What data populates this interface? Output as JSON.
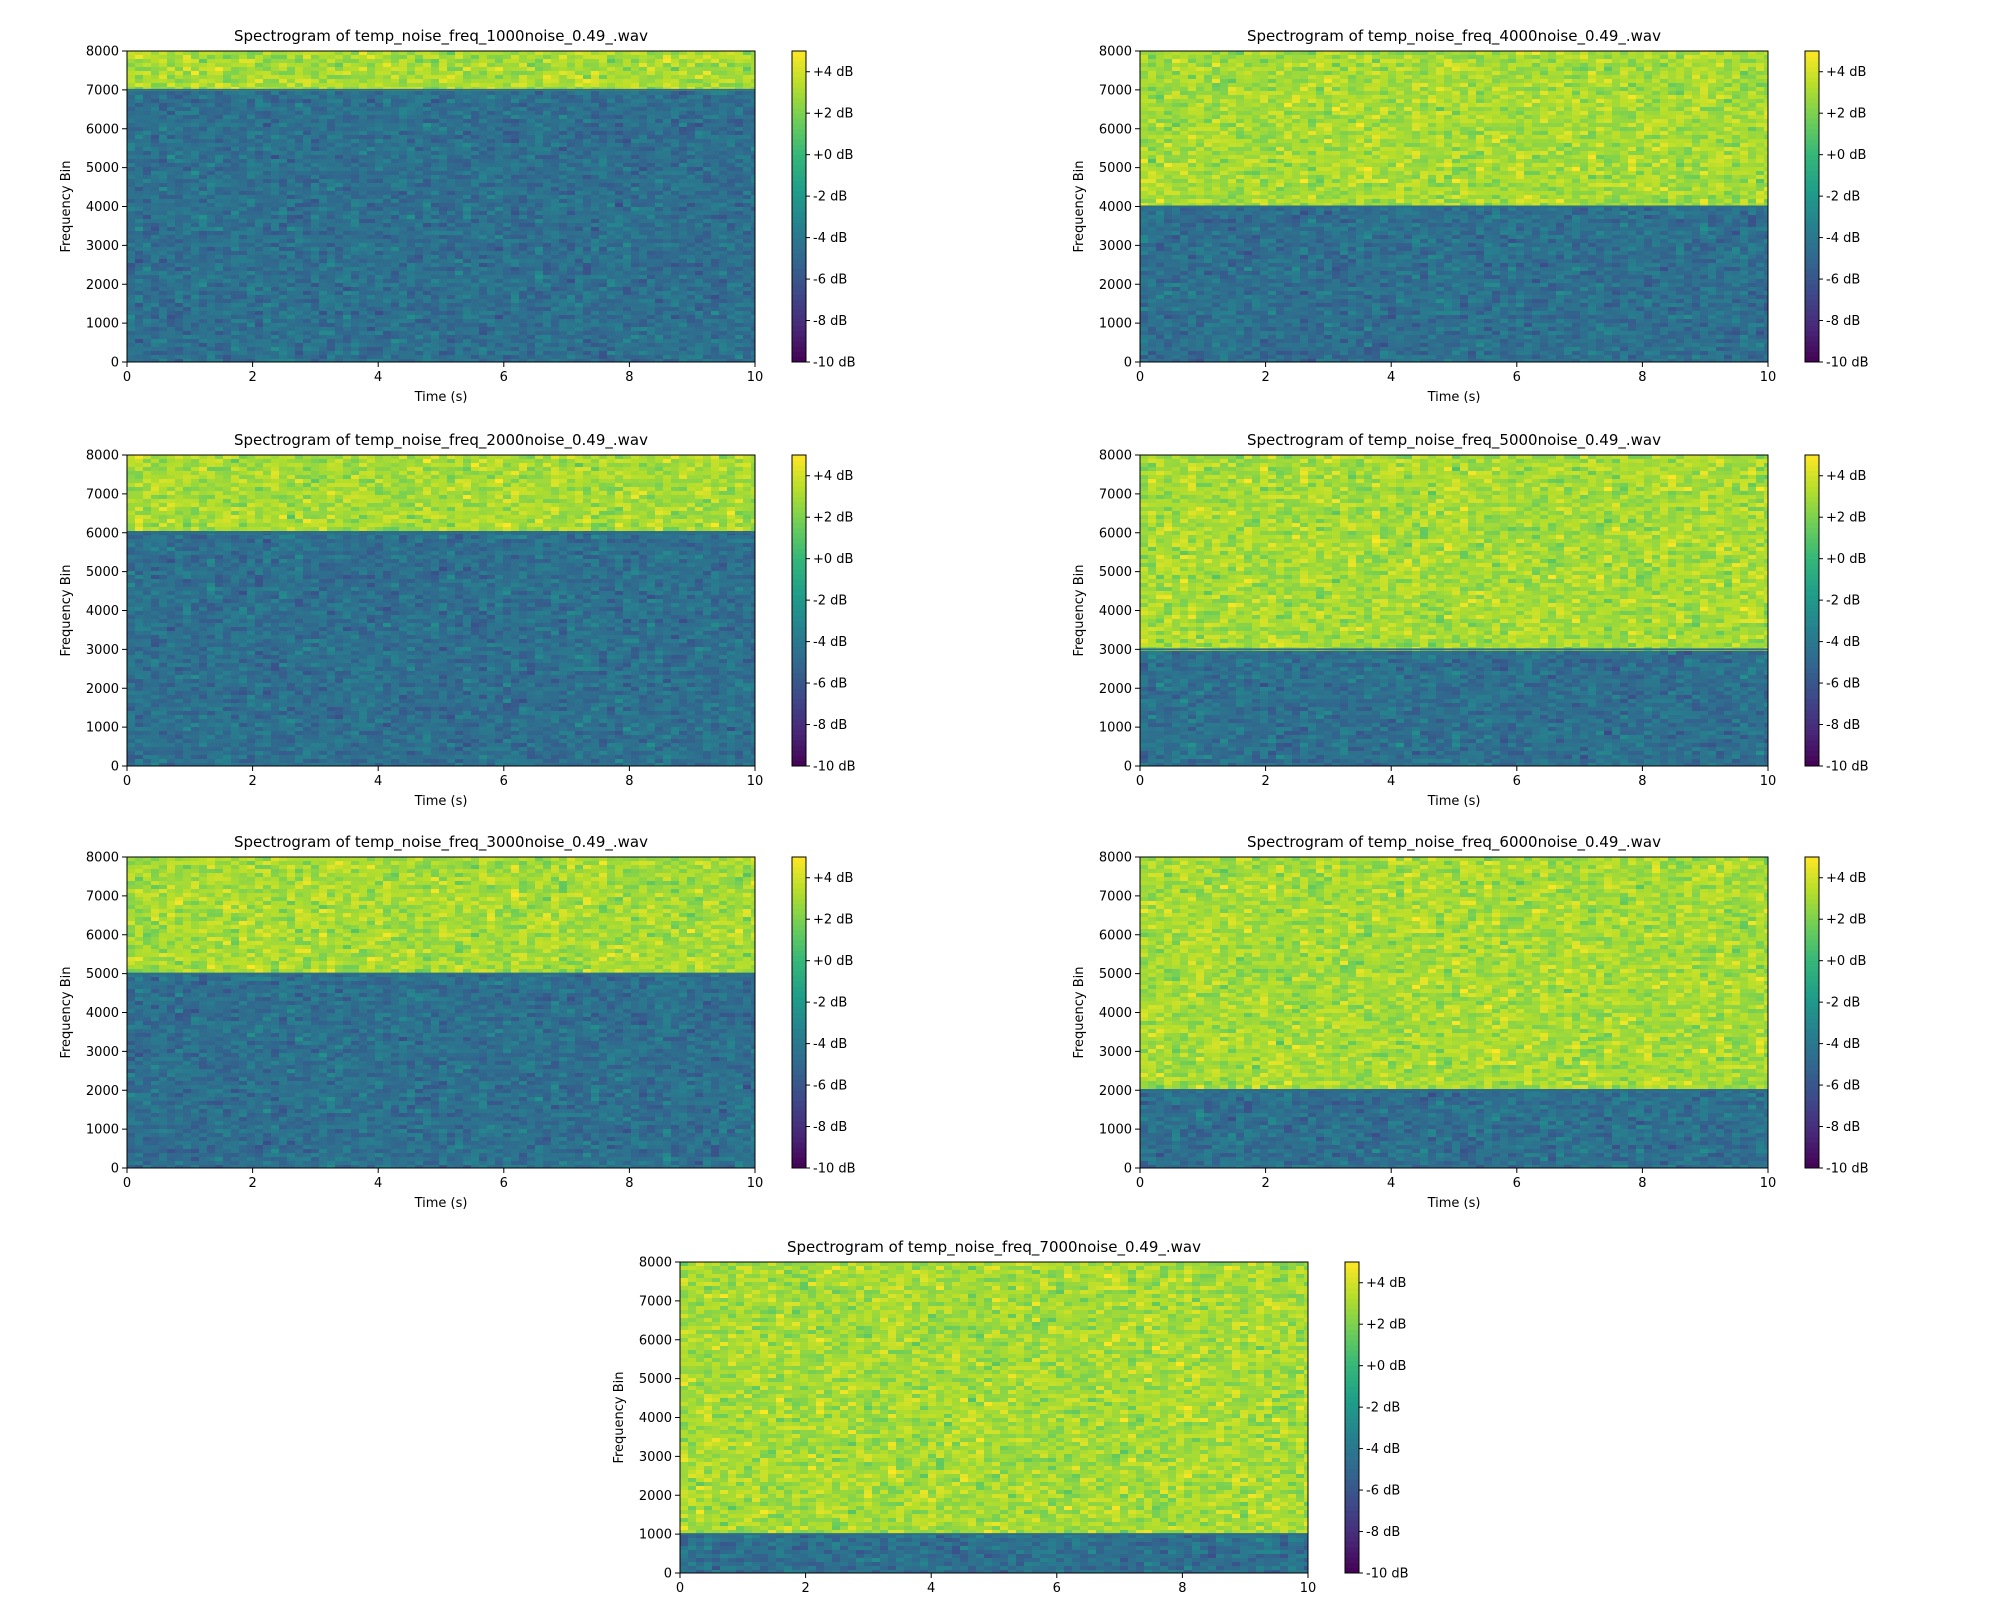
{
  "chart_data": [
    {
      "type": "heatmap",
      "title": "Spectrogram of temp_noise_freq_1000noise_0.49_.wav",
      "xlabel": "Time (s)",
      "ylabel": "Frequency Bin",
      "xlim": [
        0,
        10
      ],
      "ylim": [
        0,
        8000
      ],
      "xticks": [
        0,
        2,
        4,
        6,
        8,
        10
      ],
      "yticks": [
        0,
        1000,
        2000,
        3000,
        4000,
        5000,
        6000,
        7000,
        8000
      ],
      "boundary_hz": 7000,
      "low_band_level_db": -4.5,
      "high_band_level_db": 3,
      "colorbar": {
        "range": [
          -10,
          5
        ],
        "ticks": [
          "+4 dB",
          "+2 dB",
          "+0 dB",
          "-2 dB",
          "-4 dB",
          "-6 dB",
          "-8 dB",
          "-10 dB"
        ],
        "tick_values": [
          4,
          2,
          0,
          -2,
          -4,
          -6,
          -8,
          -10
        ]
      }
    },
    {
      "type": "heatmap",
      "title": "Spectrogram of temp_noise_freq_4000noise_0.49_.wav",
      "xlabel": "Time (s)",
      "ylabel": "Frequency Bin",
      "xlim": [
        0,
        10
      ],
      "ylim": [
        0,
        8000
      ],
      "xticks": [
        0,
        2,
        4,
        6,
        8,
        10
      ],
      "yticks": [
        0,
        1000,
        2000,
        3000,
        4000,
        5000,
        6000,
        7000,
        8000
      ],
      "boundary_hz": 4000,
      "low_band_level_db": -4.5,
      "high_band_level_db": 3,
      "colorbar": {
        "range": [
          -10,
          5
        ],
        "ticks": [
          "+4 dB",
          "+2 dB",
          "+0 dB",
          "-2 dB",
          "-4 dB",
          "-6 dB",
          "-8 dB",
          "-10 dB"
        ],
        "tick_values": [
          4,
          2,
          0,
          -2,
          -4,
          -6,
          -8,
          -10
        ]
      }
    },
    {
      "type": "heatmap",
      "title": "Spectrogram of temp_noise_freq_2000noise_0.49_.wav",
      "xlabel": "Time (s)",
      "ylabel": "Frequency Bin",
      "xlim": [
        0,
        10
      ],
      "ylim": [
        0,
        8000
      ],
      "xticks": [
        0,
        2,
        4,
        6,
        8,
        10
      ],
      "yticks": [
        0,
        1000,
        2000,
        3000,
        4000,
        5000,
        6000,
        7000,
        8000
      ],
      "boundary_hz": 6000,
      "low_band_level_db": -4.5,
      "high_band_level_db": 3,
      "colorbar": {
        "range": [
          -10,
          5
        ],
        "ticks": [
          "+4 dB",
          "+2 dB",
          "+0 dB",
          "-2 dB",
          "-4 dB",
          "-6 dB",
          "-8 dB",
          "-10 dB"
        ],
        "tick_values": [
          4,
          2,
          0,
          -2,
          -4,
          -6,
          -8,
          -10
        ]
      }
    },
    {
      "type": "heatmap",
      "title": "Spectrogram of temp_noise_freq_5000noise_0.49_.wav",
      "xlabel": "Time (s)",
      "ylabel": "Frequency Bin",
      "xlim": [
        0,
        10
      ],
      "ylim": [
        0,
        8000
      ],
      "xticks": [
        0,
        2,
        4,
        6,
        8,
        10
      ],
      "yticks": [
        0,
        1000,
        2000,
        3000,
        4000,
        5000,
        6000,
        7000,
        8000
      ],
      "boundary_hz": 3000,
      "low_band_level_db": -4.5,
      "high_band_level_db": 3,
      "colorbar": {
        "range": [
          -10,
          5
        ],
        "ticks": [
          "+4 dB",
          "+2 dB",
          "+0 dB",
          "-2 dB",
          "-4 dB",
          "-6 dB",
          "-8 dB",
          "-10 dB"
        ],
        "tick_values": [
          4,
          2,
          0,
          -2,
          -4,
          -6,
          -8,
          -10
        ]
      }
    },
    {
      "type": "heatmap",
      "title": "Spectrogram of temp_noise_freq_3000noise_0.49_.wav",
      "xlabel": "Time (s)",
      "ylabel": "Frequency Bin",
      "xlim": [
        0,
        10
      ],
      "ylim": [
        0,
        8000
      ],
      "xticks": [
        0,
        2,
        4,
        6,
        8,
        10
      ],
      "yticks": [
        0,
        1000,
        2000,
        3000,
        4000,
        5000,
        6000,
        7000,
        8000
      ],
      "boundary_hz": 5000,
      "low_band_level_db": -4.5,
      "high_band_level_db": 3,
      "colorbar": {
        "range": [
          -10,
          5
        ],
        "ticks": [
          "+4 dB",
          "+2 dB",
          "+0 dB",
          "-2 dB",
          "-4 dB",
          "-6 dB",
          "-8 dB",
          "-10 dB"
        ],
        "tick_values": [
          4,
          2,
          0,
          -2,
          -4,
          -6,
          -8,
          -10
        ]
      }
    },
    {
      "type": "heatmap",
      "title": "Spectrogram of temp_noise_freq_6000noise_0.49_.wav",
      "xlabel": "Time (s)",
      "ylabel": "Frequency Bin",
      "xlim": [
        0,
        10
      ],
      "ylim": [
        0,
        8000
      ],
      "xticks": [
        0,
        2,
        4,
        6,
        8,
        10
      ],
      "yticks": [
        0,
        1000,
        2000,
        3000,
        4000,
        5000,
        6000,
        7000,
        8000
      ],
      "boundary_hz": 2000,
      "low_band_level_db": -4.5,
      "high_band_level_db": 3,
      "colorbar": {
        "range": [
          -10,
          5
        ],
        "ticks": [
          "+4 dB",
          "+2 dB",
          "+0 dB",
          "-2 dB",
          "-4 dB",
          "-6 dB",
          "-8 dB",
          "-10 dB"
        ],
        "tick_values": [
          4,
          2,
          0,
          -2,
          -4,
          -6,
          -8,
          -10
        ]
      }
    },
    {
      "type": "heatmap",
      "title": "Spectrogram of temp_noise_freq_7000noise_0.49_.wav",
      "xlabel": "Time (s)",
      "ylabel": "Frequency Bin",
      "xlim": [
        0,
        10
      ],
      "ylim": [
        0,
        8000
      ],
      "xticks": [
        0,
        2,
        4,
        6,
        8,
        10
      ],
      "yticks": [
        0,
        1000,
        2000,
        3000,
        4000,
        5000,
        6000,
        7000,
        8000
      ],
      "boundary_hz": 1000,
      "low_band_level_db": -4.5,
      "high_band_level_db": 3,
      "colorbar": {
        "range": [
          -10,
          5
        ],
        "ticks": [
          "+4 dB",
          "+2 dB",
          "+0 dB",
          "-2 dB",
          "-4 dB",
          "-6 dB",
          "-8 dB",
          "-10 dB"
        ],
        "tick_values": [
          4,
          2,
          0,
          -2,
          -4,
          -6,
          -8,
          -10
        ]
      }
    }
  ],
  "colormap": {
    "name": "viridis",
    "stops": [
      "#440154",
      "#482878",
      "#3e4989",
      "#31688e",
      "#26828e",
      "#1f9e89",
      "#35b779",
      "#6ece58",
      "#b5de2b",
      "#fde725"
    ]
  }
}
